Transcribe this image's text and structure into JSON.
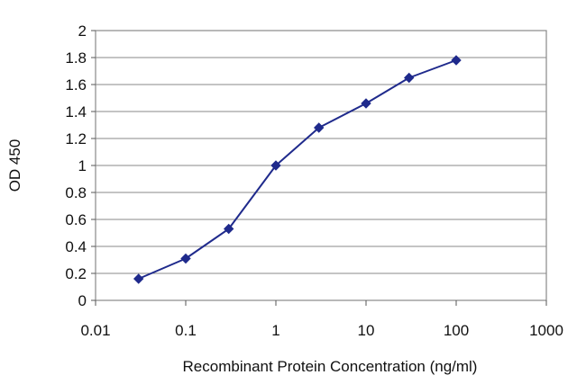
{
  "chart_data": {
    "type": "line",
    "title": "",
    "xlabel": "Recombinant Protein Concentration (ng/ml)",
    "ylabel": "OD 450",
    "xscale": "log",
    "xlim": [
      0.01,
      1000
    ],
    "ylim": [
      0,
      2
    ],
    "x_ticks": [
      0.01,
      0.1,
      1,
      10,
      100,
      1000
    ],
    "x_tick_labels": [
      "0.01",
      "0.1",
      "1",
      "10",
      "100",
      "1000"
    ],
    "y_ticks": [
      0,
      0.2,
      0.4,
      0.6,
      0.8,
      1,
      1.2,
      1.4,
      1.6,
      1.8,
      2
    ],
    "y_tick_labels": [
      "0",
      "0.2",
      "0.4",
      "0.6",
      "0.8",
      "1",
      "1.2",
      "1.4",
      "1.6",
      "1.8",
      "2"
    ],
    "grid": "horizontal",
    "legend": "none",
    "series": [
      {
        "x": [
          0.03,
          0.1,
          0.3,
          1,
          3,
          10,
          30,
          100
        ],
        "y": [
          0.16,
          0.31,
          0.53,
          1.0,
          1.28,
          1.46,
          1.65,
          1.78
        ],
        "color": "#1f2a8c"
      }
    ]
  }
}
